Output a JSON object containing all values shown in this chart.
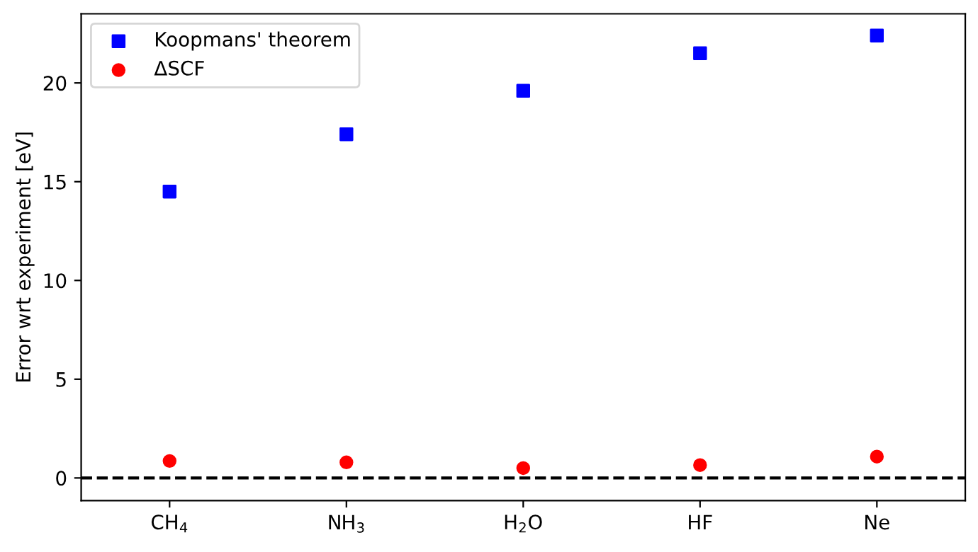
{
  "chart_data": {
    "type": "scatter",
    "ylabel": "Error wrt experiment [eV]",
    "categories": [
      "CH$_{4}$",
      "NH$_{3}$",
      "H$_{2}$O",
      "HF",
      "Ne"
    ],
    "series": [
      {
        "name": "Koopmans' theorem",
        "color": "#0000ff",
        "marker": "square",
        "values": [
          14.5,
          17.4,
          19.6,
          21.5,
          22.4
        ]
      },
      {
        "name": "ΔSCF",
        "color": "#ff0000",
        "marker": "circle",
        "values": [
          0.86,
          0.79,
          0.5,
          0.65,
          1.08
        ]
      }
    ],
    "ylim": [
      -1.15,
      23.5
    ],
    "yticks": [
      0,
      5,
      10,
      15,
      20
    ],
    "ref_lines": [
      {
        "axis": "y",
        "value": 0,
        "color": "#000000",
        "line_style": "dashed"
      }
    ],
    "legend": "top left",
    "grid": false
  }
}
